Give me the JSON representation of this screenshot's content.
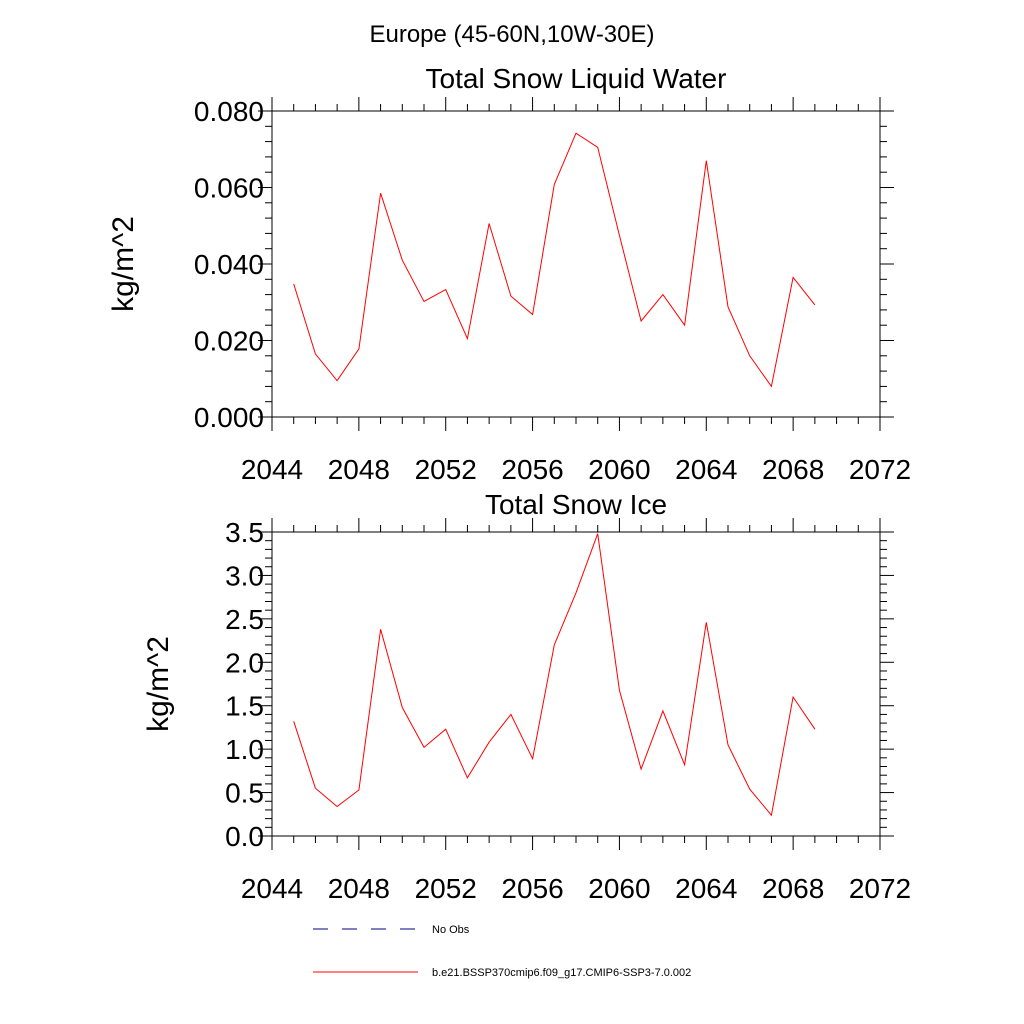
{
  "figure": {
    "title": "Europe (45-60N,10W-30E)"
  },
  "colors": {
    "series": "#ff0000",
    "obs": "#000080",
    "axis": "#000000"
  },
  "chart_data": [
    {
      "type": "line",
      "title": "Total Snow Liquid Water",
      "xlabel": "",
      "ylabel": "kg/m^2",
      "xlim": [
        2044,
        2072
      ],
      "ylim": [
        0,
        0.08
      ],
      "xticks": [
        2044,
        2048,
        2052,
        2056,
        2060,
        2064,
        2068,
        2072
      ],
      "xtick_labels": [
        "2044",
        "2048",
        "2052",
        "2056",
        "2060",
        "2064",
        "2068",
        "2072"
      ],
      "yticks": [
        0,
        0.02,
        0.04,
        0.06,
        0.08
      ],
      "ytick_labels": [
        "0.000",
        "0.020",
        "0.040",
        "0.060",
        "0.080"
      ],
      "x": [
        2045,
        2046,
        2047,
        2048,
        2049,
        2050,
        2051,
        2052,
        2053,
        2054,
        2055,
        2056,
        2057,
        2058,
        2059,
        2060,
        2061,
        2062,
        2063,
        2064,
        2065,
        2066,
        2067,
        2068,
        2069
      ],
      "series": [
        {
          "name": "b.e21.BSSP370cmip6.f09_g17.CMIP6-SSP3-7.0.002",
          "values": [
            0.0348,
            0.0165,
            0.0095,
            0.0178,
            0.0585,
            0.041,
            0.0302,
            0.0333,
            0.0205,
            0.0506,
            0.0316,
            0.0268,
            0.0608,
            0.0742,
            0.0705,
            0.0475,
            0.0251,
            0.032,
            0.024,
            0.067,
            0.0288,
            0.016,
            0.008,
            0.0365,
            0.0293
          ]
        }
      ]
    },
    {
      "type": "line",
      "title": "Total Snow Ice",
      "xlabel": "",
      "ylabel": "kg/m^2",
      "xlim": [
        2044,
        2072
      ],
      "ylim": [
        0,
        3.5
      ],
      "xticks": [
        2044,
        2048,
        2052,
        2056,
        2060,
        2064,
        2068,
        2072
      ],
      "xtick_labels": [
        "2044",
        "2048",
        "2052",
        "2056",
        "2060",
        "2064",
        "2068",
        "2072"
      ],
      "yticks": [
        0,
        0.5,
        1.0,
        1.5,
        2.0,
        2.5,
        3.0,
        3.5
      ],
      "ytick_labels": [
        "0.0",
        "0.5",
        "1.0",
        "1.5",
        "2.0",
        "2.5",
        "3.0",
        "3.5"
      ],
      "x": [
        2045,
        2046,
        2047,
        2048,
        2049,
        2050,
        2051,
        2052,
        2053,
        2054,
        2055,
        2056,
        2057,
        2058,
        2059,
        2060,
        2061,
        2062,
        2063,
        2064,
        2065,
        2066,
        2067,
        2068,
        2069
      ],
      "series": [
        {
          "name": "b.e21.BSSP370cmip6.f09_g17.CMIP6-SSP3-7.0.002",
          "values": [
            1.32,
            0.55,
            0.34,
            0.53,
            2.38,
            1.48,
            1.02,
            1.23,
            0.67,
            1.08,
            1.4,
            0.89,
            2.2,
            2.8,
            3.48,
            1.68,
            0.77,
            1.44,
            0.82,
            2.46,
            1.05,
            0.54,
            0.24,
            1.6,
            1.23
          ]
        }
      ]
    }
  ],
  "legend": {
    "entries": [
      {
        "label": "No Obs",
        "style": "dashed",
        "color": "#000080"
      },
      {
        "label": "b.e21.BSSP370cmip6.f09_g17.CMIP6-SSP3-7.0.002",
        "style": "solid",
        "color": "#ff0000"
      }
    ]
  }
}
